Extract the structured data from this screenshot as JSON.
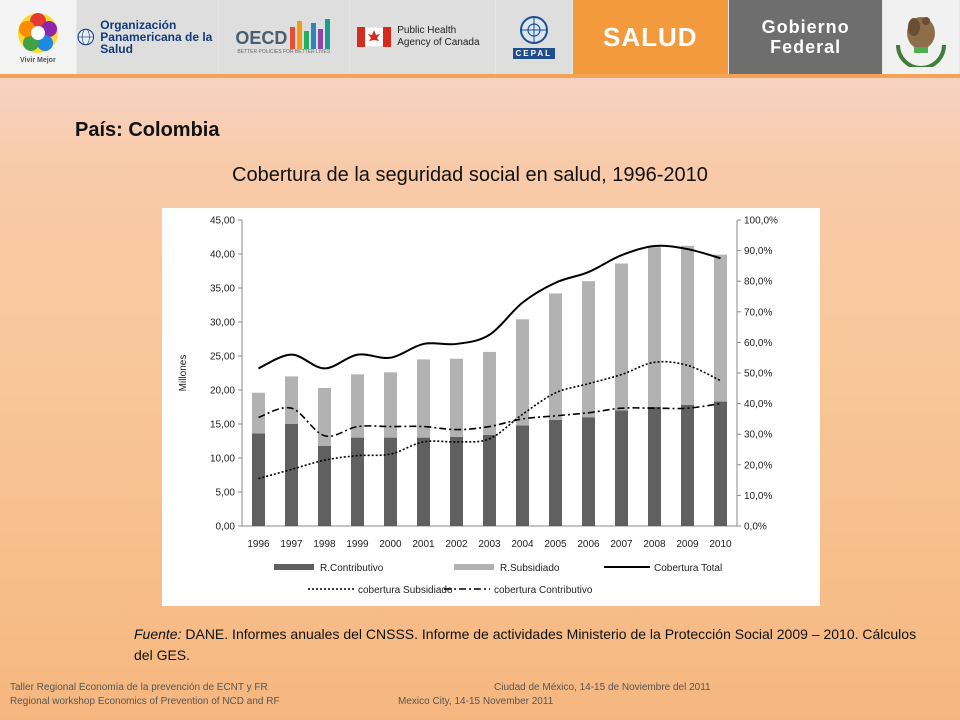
{
  "banner": {
    "vivir_label": "Vivir Mejor",
    "ops_name": "Organización Panamericana de la Salud",
    "oecd_name": "OECD",
    "oecd_tagline": "BETTER POLICIES FOR BETTER LIVES",
    "canada_name": "Public Health Agency of Canada",
    "cepal_name": "CEPAL",
    "salud_label": "SALUD",
    "gobierno_label": "Gobierno Federal"
  },
  "page": {
    "country_label": "País: Colombia",
    "source_prefix": "Fuente:",
    "source_text": "DANE. Informes anuales del CNSSS. Informe de actividades Ministerio de la Protección Social 2009 – 2010. Cálculos del GES."
  },
  "footer": {
    "left_line1": "Taller Regional Economía de la prevención de ECNT y FR",
    "left_line2": "Regional workshop Economics of Prevention of NCD and RF",
    "right_line1": "Ciudad de México, 14-15 de Noviembre del 2011",
    "right_line2": "Mexico City, 14-15 November 2011"
  },
  "colors": {
    "contributivo_bar": "#606060",
    "subsidiado_bar": "#b2b2b2",
    "line": "#000000",
    "salud_orange": "#f39a3d",
    "gobierno_gray": "#6e6e6e"
  },
  "chart_data": {
    "type": "bar",
    "title": "Cobertura de la seguridad social en salud, 1996-2010",
    "ylabel": "Millones",
    "ylim": [
      0,
      45
    ],
    "y2lim": [
      0,
      100
    ],
    "y_ticks": [
      "0,00",
      "5,00",
      "10,00",
      "15,00",
      "20,00",
      "25,00",
      "30,00",
      "35,00",
      "40,00",
      "45,00"
    ],
    "y2_ticks": [
      "0,0%",
      "10,0%",
      "20,0%",
      "30,0%",
      "40,0%",
      "50,0%",
      "60,0%",
      "70,0%",
      "80,0%",
      "90,0%",
      "100,0%"
    ],
    "categories": [
      "1996",
      "1997",
      "1998",
      "1999",
      "2000",
      "2001",
      "2002",
      "2003",
      "2004",
      "2005",
      "2006",
      "2007",
      "2008",
      "2009",
      "2010"
    ],
    "stacked": true,
    "series": [
      {
        "name": "R.Contributivo",
        "kind": "bar",
        "axis": "left",
        "values": [
          13.6,
          15.0,
          11.8,
          13.0,
          13.0,
          13.0,
          13.1,
          13.4,
          14.8,
          15.6,
          16.0,
          17.0,
          17.5,
          17.8,
          18.3
        ]
      },
      {
        "name": "R.Subsidiado",
        "kind": "bar",
        "axis": "left",
        "values": [
          6.0,
          7.0,
          8.5,
          9.3,
          9.6,
          11.5,
          11.5,
          12.2,
          15.6,
          18.6,
          20.0,
          21.6,
          23.5,
          23.4,
          21.6
        ]
      },
      {
        "name": "Cobertura Total",
        "kind": "line",
        "style": "solid",
        "axis": "right",
        "values": [
          51.5,
          56.0,
          51.5,
          56.0,
          55.0,
          59.5,
          59.5,
          62.5,
          73.0,
          79.5,
          83.0,
          88.5,
          91.5,
          90.5,
          87.5
        ]
      },
      {
        "name": "cobertura Subsidiado",
        "kind": "line",
        "style": "dotted",
        "axis": "right",
        "values": [
          15.5,
          18.5,
          21.5,
          23.0,
          23.5,
          27.5,
          27.5,
          28.5,
          36.5,
          43.5,
          46.5,
          49.5,
          53.5,
          52.5,
          47.5
        ]
      },
      {
        "name": "cobertura Contributivo",
        "kind": "line",
        "style": "dashdot",
        "axis": "right",
        "values": [
          35.5,
          38.5,
          29.5,
          32.5,
          32.5,
          32.5,
          31.5,
          32.5,
          35.0,
          36.0,
          37.0,
          38.5,
          38.5,
          38.5,
          40.0
        ]
      }
    ],
    "legend_position": "bottom",
    "legend": [
      "R.Contributivo",
      "R.Subsidiado",
      "Cobertura Total",
      "cobertura Subsidiado",
      "cobertura Contributivo"
    ]
  }
}
